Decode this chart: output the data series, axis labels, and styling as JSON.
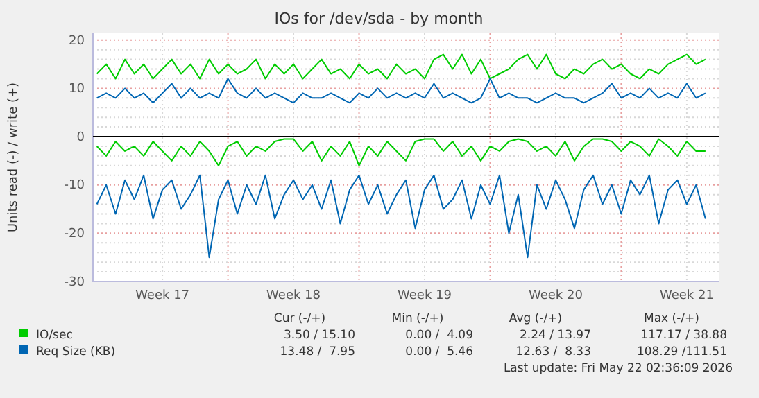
{
  "chart_data": {
    "type": "line",
    "title": "IOs for /dev/sda - by month",
    "ylabel": "Units read (-) / write (+)",
    "x": [
      "2026-04-20T00:00",
      "2026-04-20T12:00",
      "2026-04-21T00:00",
      "2026-04-21T12:00",
      "2026-04-22T00:00",
      "2026-04-22T12:00",
      "2026-04-23T00:00",
      "2026-04-23T12:00",
      "2026-04-24T00:00",
      "2026-04-24T12:00",
      "2026-04-25T00:00",
      "2026-04-25T12:00",
      "2026-04-26T00:00",
      "2026-04-26T12:00",
      "2026-04-27T00:00",
      "2026-04-27T12:00",
      "2026-04-28T00:00",
      "2026-04-28T12:00",
      "2026-04-29T00:00",
      "2026-04-29T12:00",
      "2026-04-30T00:00",
      "2026-04-30T12:00",
      "2026-05-01T00:00",
      "2026-05-01T12:00",
      "2026-05-02T00:00",
      "2026-05-02T12:00",
      "2026-05-03T00:00",
      "2026-05-03T12:00",
      "2026-05-04T00:00",
      "2026-05-04T12:00",
      "2026-05-05T00:00",
      "2026-05-05T12:00",
      "2026-05-06T00:00",
      "2026-05-06T12:00",
      "2026-05-07T00:00",
      "2026-05-07T12:00",
      "2026-05-08T00:00",
      "2026-05-08T12:00",
      "2026-05-09T00:00",
      "2026-05-09T12:00",
      "2026-05-10T00:00",
      "2026-05-10T12:00",
      "2026-05-11T00:00",
      "2026-05-11T12:00",
      "2026-05-12T00:00",
      "2026-05-12T12:00",
      "2026-05-13T00:00",
      "2026-05-13T12:00",
      "2026-05-14T00:00",
      "2026-05-14T12:00",
      "2026-05-15T00:00",
      "2026-05-15T12:00",
      "2026-05-16T00:00",
      "2026-05-16T12:00",
      "2026-05-17T00:00",
      "2026-05-17T12:00",
      "2026-05-18T00:00",
      "2026-05-18T12:00",
      "2026-05-19T00:00",
      "2026-05-19T12:00",
      "2026-05-20T00:00",
      "2026-05-20T12:00",
      "2026-05-21T00:00",
      "2026-05-21T12:00",
      "2026-05-22T00:00",
      "2026-05-22T12:00"
    ],
    "series": [
      {
        "name": "IO/sec",
        "color": "#00cc00",
        "values": [
          13,
          15,
          12,
          16,
          13,
          15,
          12,
          14,
          16,
          13,
          15,
          12,
          16,
          13,
          15,
          13,
          14,
          16,
          12,
          15,
          13,
          15,
          12,
          14,
          16,
          13,
          14,
          12,
          15,
          13,
          14,
          12,
          15,
          13,
          14,
          12,
          16,
          17,
          14,
          17,
          13,
          16,
          12,
          13,
          14,
          16,
          17,
          14,
          17,
          13,
          12,
          14,
          13,
          15,
          16,
          14,
          15,
          13,
          12,
          14,
          13,
          15,
          16,
          17,
          15,
          16
        ]
      },
      {
        "color": "#00cc00",
        "values": [
          -2,
          -4,
          -1,
          -3,
          -2,
          -4,
          -1,
          -3,
          -5,
          -2,
          -4,
          -1,
          -3,
          -6,
          -2,
          -1,
          -4,
          -2,
          -3,
          -1,
          -0.5,
          -0.5,
          -3,
          -1,
          -5,
          -2,
          -4,
          -1,
          -6,
          -2,
          -4,
          -1,
          -3,
          -5,
          -1,
          -0.5,
          -0.5,
          -3,
          -1,
          -4,
          -2,
          -5,
          -2,
          -3,
          -1,
          -0.5,
          -1,
          -3,
          -2,
          -4,
          -1,
          -5,
          -2,
          -0.5,
          -0.5,
          -1,
          -3,
          -1,
          -2,
          -4,
          -0.5,
          -2,
          -4,
          -1,
          -3,
          -3
        ]
      },
      {
        "name": "Req Size (KB)",
        "color": "#0066b3",
        "values": [
          8,
          9,
          8,
          10,
          8,
          9,
          7,
          9,
          11,
          8,
          10,
          8,
          9,
          8,
          12,
          9,
          8,
          10,
          8,
          9,
          8,
          7,
          9,
          8,
          8,
          9,
          8,
          7,
          9,
          8,
          10,
          8,
          9,
          8,
          9,
          8,
          11,
          8,
          9,
          8,
          7,
          8,
          12,
          8,
          9,
          8,
          8,
          7,
          8,
          9,
          8,
          8,
          7,
          8,
          9,
          11,
          8,
          9,
          8,
          10,
          8,
          9,
          8,
          11,
          8,
          9
        ]
      },
      {
        "color": "#0066b3",
        "values": [
          -14,
          -10,
          -16,
          -9,
          -13,
          -8,
          -17,
          -11,
          -9,
          -15,
          -12,
          -8,
          -25,
          -13,
          -9,
          -16,
          -10,
          -14,
          -8,
          -17,
          -12,
          -9,
          -13,
          -10,
          -15,
          -9,
          -18,
          -11,
          -8,
          -14,
          -10,
          -16,
          -12,
          -9,
          -19,
          -11,
          -8,
          -15,
          -13,
          -9,
          -17,
          -10,
          -14,
          -8,
          -20,
          -12,
          -25,
          -10,
          -15,
          -9,
          -13,
          -19,
          -11,
          -8,
          -14,
          -10,
          -16,
          -9,
          -12,
          -8,
          -18,
          -11,
          -9,
          -14,
          -10,
          -17
        ]
      }
    ],
    "xlim": [
      "2026-04-19T19:00",
      "2026-05-23T05:00"
    ],
    "xticks": [
      {
        "value": "2026-04-23T12:00",
        "label": "Week 17"
      },
      {
        "value": "2026-04-27",
        "label": null
      },
      {
        "value": "2026-04-30T12:00",
        "label": "Week 18"
      },
      {
        "value": "2026-05-04",
        "label": null
      },
      {
        "value": "2026-05-07T12:00",
        "label": "Week 19"
      },
      {
        "value": "2026-05-11",
        "label": null
      },
      {
        "value": "2026-05-14T12:00",
        "label": "Week 20"
      },
      {
        "value": "2026-05-18",
        "label": null
      },
      {
        "value": "2026-05-21T12:00",
        "label": "Week 21"
      }
    ],
    "ylim": [
      -30,
      21.4
    ],
    "yticks": [
      -30,
      {
        "value": -28,
        "label": null
      },
      {
        "value": -26,
        "label": null
      },
      {
        "value": -24,
        "label": null
      },
      {
        "value": -22,
        "label": null
      },
      -20,
      {
        "value": -18,
        "label": null
      },
      {
        "value": -16,
        "label": null
      },
      {
        "value": -14,
        "label": null
      },
      {
        "value": -12,
        "label": null
      },
      -10,
      {
        "value": -8,
        "label": null
      },
      {
        "value": -6,
        "label": null
      },
      {
        "value": -4,
        "label": null
      },
      {
        "value": -2,
        "label": null
      },
      0,
      {
        "value": 2,
        "label": null
      },
      {
        "value": 4,
        "label": null
      },
      {
        "value": 6,
        "label": null
      },
      {
        "value": 8,
        "label": null
      },
      10,
      {
        "value": 12,
        "label": null
      },
      {
        "value": 14,
        "label": null
      },
      {
        "value": 16,
        "label": null
      },
      {
        "value": 18,
        "label": null
      },
      20
    ],
    "grid": true,
    "legend": "bottom",
    "marker": "none",
    "line_style": "solid",
    "ref_lines": [
      {
        "axis": "y",
        "value": 0,
        "color": "#000000"
      }
    ],
    "annotations": [
      "Cur (-/+)",
      "Min (-/+)",
      "Avg (-/+)",
      "Max (-/+)",
      "3.50 / 15.10",
      "0.00 /  4.09",
      "2.24 / 13.97",
      "117.17 / 38.88",
      "13.48 /  7.95",
      "0.00 /  5.46",
      "12.63 /  8.33",
      "108.29 /111.51",
      "Last update: Fri May 22 02:36:09 2026"
    ]
  }
}
